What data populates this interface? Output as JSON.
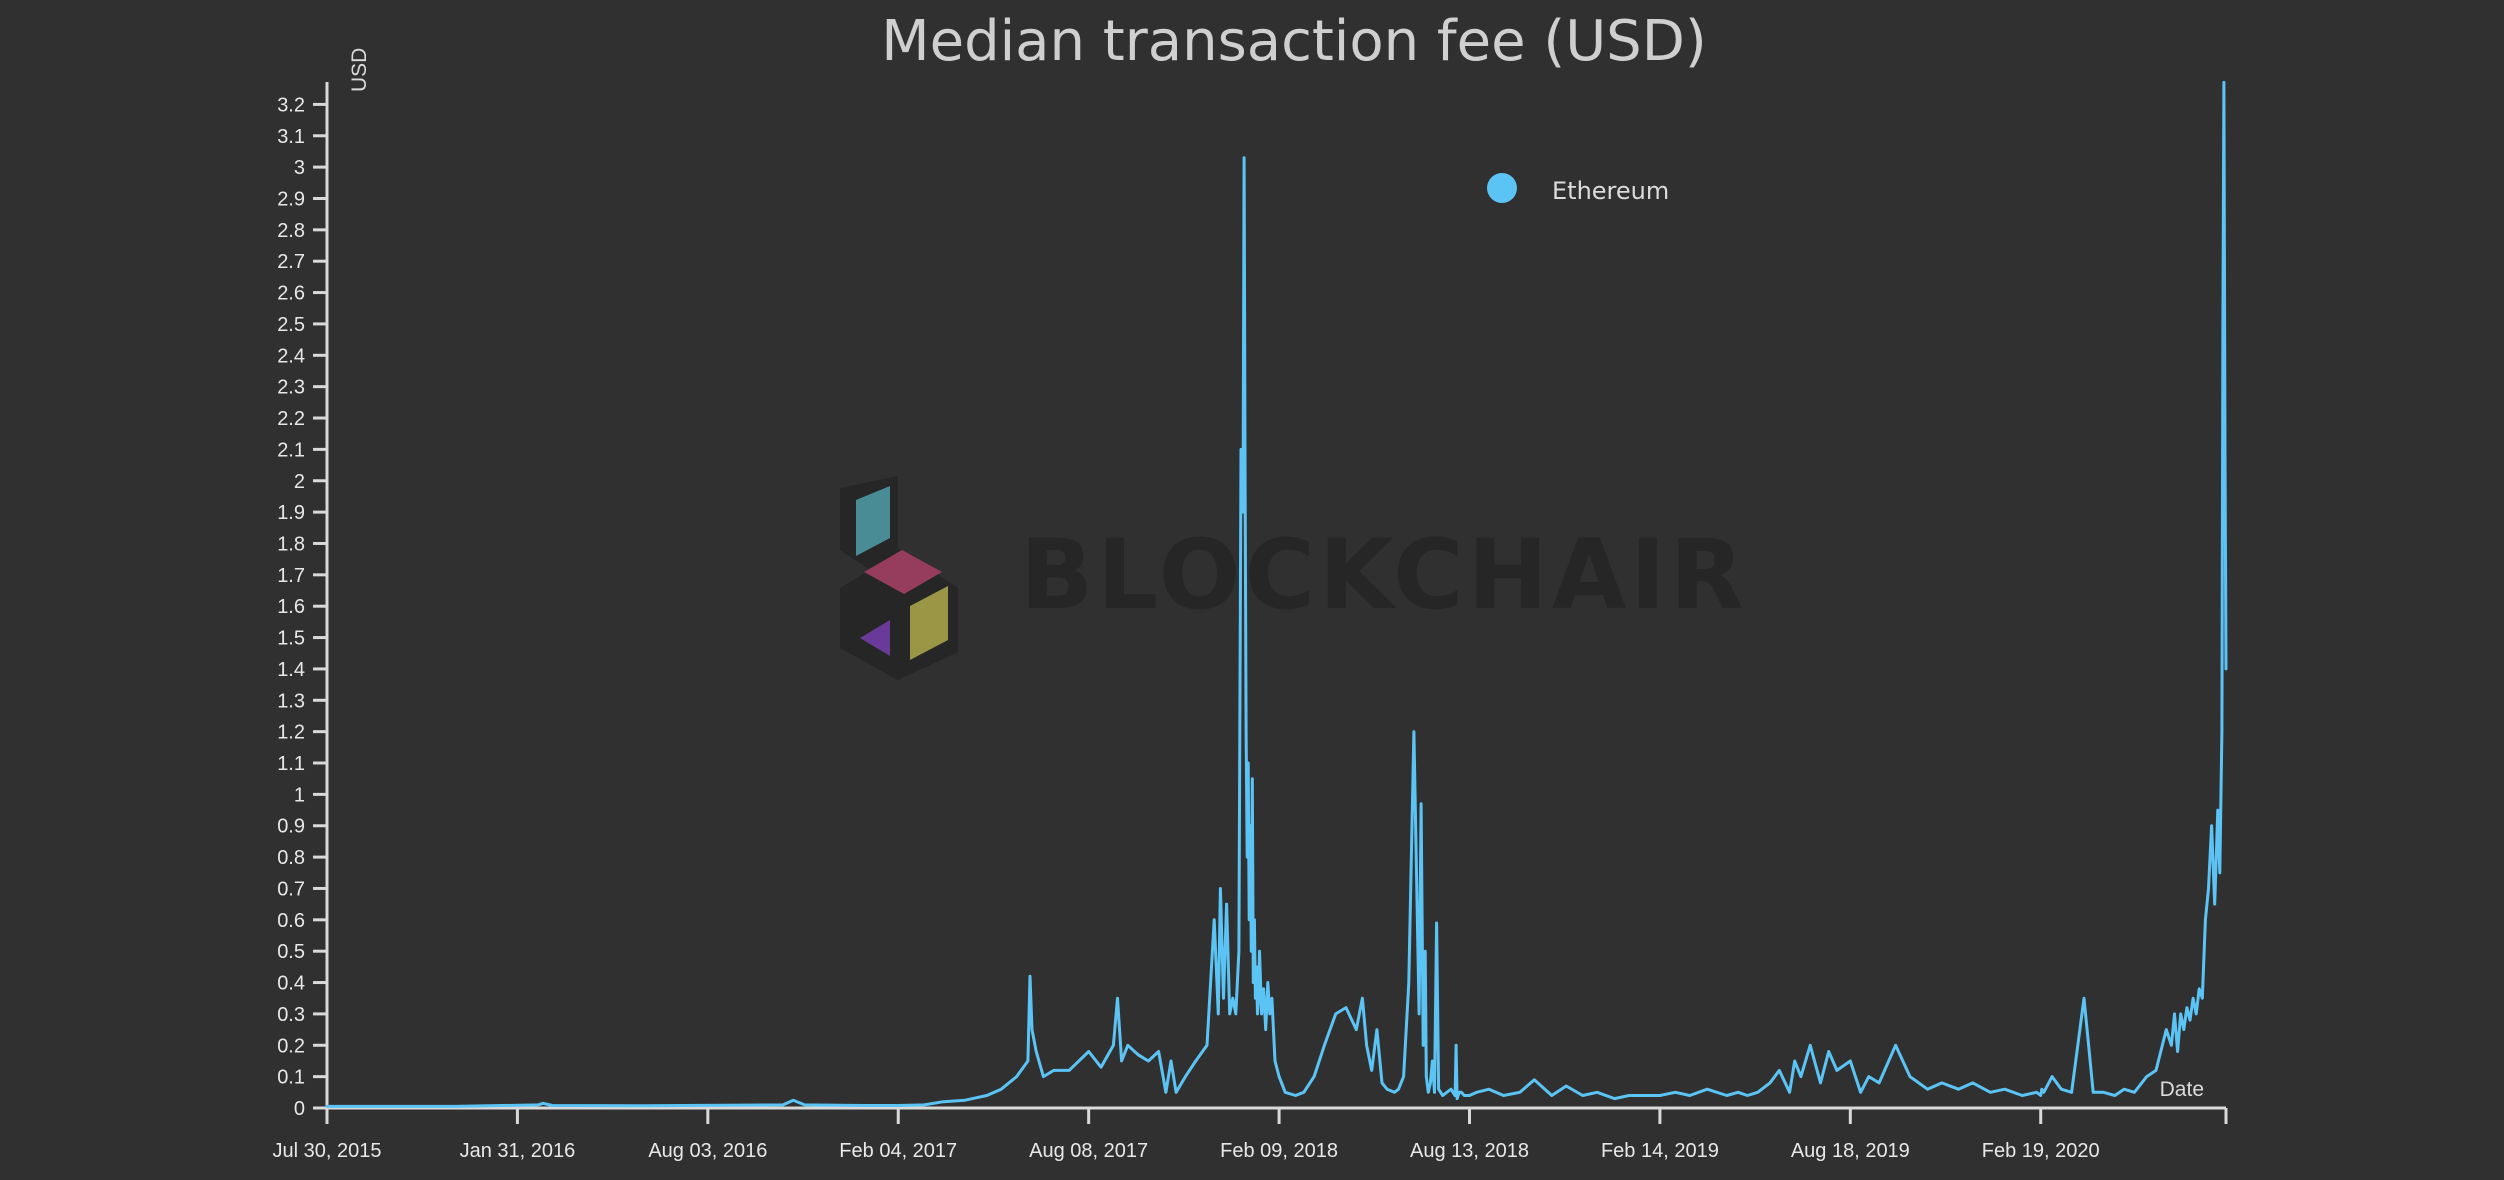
{
  "chart_data": {
    "type": "line",
    "title": "Median transaction fee (USD)",
    "ylabel": "USD",
    "xlabel": "Date",
    "ylim": [
      0,
      3.27
    ],
    "xlim": [
      "2015-07-30",
      "2020-08-17"
    ],
    "y_ticks": [
      0,
      0.1,
      0.2,
      0.3,
      0.4,
      0.5,
      0.6,
      0.7,
      0.8,
      0.9,
      1,
      1.1,
      1.2,
      1.3,
      1.4,
      1.5,
      1.6,
      1.7,
      1.8,
      1.9,
      2,
      2.1,
      2.2,
      2.3,
      2.4,
      2.5,
      2.6,
      2.7,
      2.8,
      2.9,
      3,
      3.1,
      3.2
    ],
    "y_tick_labels": [
      "0",
      "0.1",
      "0.2",
      "0.3",
      "0.4",
      "0.5",
      "0.6",
      "0.7",
      "0.8",
      "0.9",
      "1",
      "1.1",
      "1.2",
      "1.3",
      "1.4",
      "1.5",
      "1.6",
      "1.7",
      "1.8",
      "1.9",
      "2",
      "2.1",
      "2.2",
      "2.3",
      "2.4",
      "2.5",
      "2.6",
      "2.7",
      "2.8",
      "2.9",
      "3",
      "3.1",
      "3.2"
    ],
    "x_ticks": [
      "2015-07-30",
      "2016-01-31",
      "2016-08-03",
      "2017-02-04",
      "2017-08-08",
      "2018-02-09",
      "2018-08-13",
      "2019-02-14",
      "2019-08-18",
      "2020-02-19"
    ],
    "x_tick_labels": [
      "Jul 30, 2015",
      "Jan 31, 2016",
      "Aug 03, 2016",
      "Feb 04, 2017",
      "Aug 08, 2017",
      "Feb 09, 2018",
      "Aug 13, 2018",
      "Feb 14, 2019",
      "Aug 18, 2019",
      "Feb 19, 2020"
    ],
    "grid": false,
    "legend_position": "top-center",
    "watermark": "BLOCKCHAIR",
    "colors": {
      "background": "#303030",
      "axis": "#d9d9d9",
      "text": "#e8e8e8",
      "title": "#cfcfcf"
    },
    "series": [
      {
        "name": "Ethereum",
        "color": "#5bc4f5",
        "x": [
          "2015-07-30",
          "2015-12-01",
          "2016-02-20",
          "2016-02-25",
          "2016-03-05",
          "2016-06-01",
          "2016-10-15",
          "2016-10-25",
          "2016-11-05",
          "2017-01-01",
          "2017-02-04",
          "2017-03-01",
          "2017-03-20",
          "2017-04-10",
          "2017-05-01",
          "2017-05-15",
          "2017-05-30",
          "2017-06-10",
          "2017-06-12",
          "2017-06-14",
          "2017-06-18",
          "2017-06-25",
          "2017-07-05",
          "2017-07-20",
          "2017-08-08",
          "2017-08-20",
          "2017-09-01",
          "2017-09-05",
          "2017-09-09",
          "2017-09-15",
          "2017-09-25",
          "2017-10-05",
          "2017-10-15",
          "2017-10-22",
          "2017-10-27",
          "2017-11-01",
          "2017-11-10",
          "2017-11-20",
          "2017-12-01",
          "2017-12-08",
          "2017-12-12",
          "2017-12-14",
          "2017-12-17",
          "2017-12-20",
          "2017-12-23",
          "2017-12-26",
          "2017-12-29",
          "2018-01-01",
          "2018-01-03",
          "2018-01-05",
          "2018-01-06",
          "2018-01-07",
          "2018-01-08",
          "2018-01-09",
          "2018-01-10",
          "2018-01-11",
          "2018-01-12",
          "2018-01-13",
          "2018-01-14",
          "2018-01-15",
          "2018-01-16",
          "2018-01-17",
          "2018-01-18",
          "2018-01-19",
          "2018-01-20",
          "2018-01-21",
          "2018-01-23",
          "2018-01-25",
          "2018-01-27",
          "2018-01-29",
          "2018-01-31",
          "2018-02-02",
          "2018-02-05",
          "2018-02-09",
          "2018-02-15",
          "2018-02-25",
          "2018-03-05",
          "2018-03-15",
          "2018-03-25",
          "2018-04-05",
          "2018-04-15",
          "2018-04-25",
          "2018-05-01",
          "2018-05-05",
          "2018-05-10",
          "2018-05-15",
          "2018-05-20",
          "2018-05-25",
          "2018-06-01",
          "2018-06-05",
          "2018-06-10",
          "2018-06-15",
          "2018-06-20",
          "2018-06-25",
          "2018-06-27",
          "2018-06-29",
          "2018-07-01",
          "2018-07-02",
          "2018-07-04",
          "2018-07-06",
          "2018-07-08",
          "2018-07-10",
          "2018-07-12",
          "2018-07-14",
          "2018-07-18",
          "2018-07-22",
          "2018-07-26",
          "2018-07-30",
          "2018-07-31",
          "2018-08-01",
          "2018-08-03",
          "2018-08-05",
          "2018-08-08",
          "2018-08-13",
          "2018-08-20",
          "2018-09-01",
          "2018-09-15",
          "2018-10-01",
          "2018-10-15",
          "2018-11-01",
          "2018-11-15",
          "2018-12-01",
          "2018-12-15",
          "2019-01-01",
          "2019-01-15",
          "2019-02-14",
          "2019-03-01",
          "2019-03-15",
          "2019-04-01",
          "2019-04-20",
          "2019-05-01",
          "2019-05-10",
          "2019-05-20",
          "2019-06-01",
          "2019-06-10",
          "2019-06-20",
          "2019-06-25",
          "2019-07-01",
          "2019-07-10",
          "2019-07-20",
          "2019-07-28",
          "2019-08-05",
          "2019-08-18",
          "2019-08-28",
          "2019-09-05",
          "2019-09-15",
          "2019-10-01",
          "2019-10-15",
          "2019-11-01",
          "2019-11-15",
          "2019-12-01",
          "2019-12-15",
          "2020-01-01",
          "2020-01-15",
          "2020-02-01",
          "2020-02-15",
          "2020-02-19",
          "2020-02-20",
          "2020-02-22",
          "2020-03-01",
          "2020-03-10",
          "2020-03-20",
          "2020-04-01",
          "2020-04-10",
          "2020-04-20",
          "2020-05-01",
          "2020-05-10",
          "2020-05-20",
          "2020-06-01",
          "2020-06-10",
          "2020-06-20",
          "2020-06-25",
          "2020-06-28",
          "2020-07-01",
          "2020-07-04",
          "2020-07-07",
          "2020-07-10",
          "2020-07-13",
          "2020-07-16",
          "2020-07-19",
          "2020-07-22",
          "2020-07-25",
          "2020-07-28",
          "2020-07-31",
          "2020-08-03",
          "2020-08-06",
          "2020-08-09",
          "2020-08-11",
          "2020-08-13",
          "2020-08-14",
          "2020-08-15",
          "2020-08-16",
          "2020-08-17"
        ],
        "y": [
          0.005,
          0.005,
          0.01,
          0.015,
          0.008,
          0.007,
          0.01,
          0.025,
          0.01,
          0.008,
          0.008,
          0.01,
          0.02,
          0.025,
          0.04,
          0.06,
          0.1,
          0.15,
          0.42,
          0.25,
          0.18,
          0.1,
          0.12,
          0.12,
          0.18,
          0.13,
          0.2,
          0.35,
          0.15,
          0.2,
          0.17,
          0.15,
          0.18,
          0.05,
          0.15,
          0.05,
          0.1,
          0.15,
          0.2,
          0.6,
          0.3,
          0.7,
          0.35,
          0.65,
          0.3,
          0.35,
          0.3,
          0.5,
          2.1,
          1.9,
          3.03,
          2.0,
          1.2,
          0.8,
          1.1,
          0.6,
          0.9,
          0.5,
          1.05,
          0.4,
          0.6,
          0.35,
          0.45,
          0.3,
          0.35,
          0.5,
          0.3,
          0.38,
          0.25,
          0.4,
          0.3,
          0.35,
          0.15,
          0.1,
          0.05,
          0.04,
          0.05,
          0.1,
          0.2,
          0.3,
          0.32,
          0.25,
          0.35,
          0.2,
          0.12,
          0.25,
          0.08,
          0.06,
          0.05,
          0.06,
          0.1,
          0.4,
          1.2,
          0.3,
          0.97,
          0.2,
          0.5,
          0.1,
          0.05,
          0.08,
          0.15,
          0.05,
          0.59,
          0.06,
          0.04,
          0.05,
          0.06,
          0.04,
          0.2,
          0.03,
          0.05,
          0.05,
          0.04,
          0.04,
          0.05,
          0.06,
          0.04,
          0.05,
          0.09,
          0.04,
          0.07,
          0.04,
          0.05,
          0.03,
          0.04,
          0.04,
          0.05,
          0.04,
          0.06,
          0.04,
          0.05,
          0.04,
          0.05,
          0.08,
          0.12,
          0.05,
          0.15,
          0.1,
          0.2,
          0.08,
          0.18,
          0.12,
          0.15,
          0.05,
          0.1,
          0.08,
          0.2,
          0.1,
          0.06,
          0.08,
          0.06,
          0.08,
          0.05,
          0.06,
          0.04,
          0.05,
          0.04,
          0.06,
          0.05,
          0.1,
          0.06,
          0.05,
          0.35,
          0.05,
          0.05,
          0.04,
          0.06,
          0.05,
          0.1,
          0.12,
          0.25,
          0.2,
          0.3,
          0.18,
          0.3,
          0.25,
          0.32,
          0.28,
          0.35,
          0.3,
          0.38,
          0.35,
          0.6,
          0.7,
          0.9,
          0.65,
          0.95,
          0.75,
          1.2,
          2.5,
          3.27,
          2.1,
          1.4
        ]
      }
    ]
  }
}
